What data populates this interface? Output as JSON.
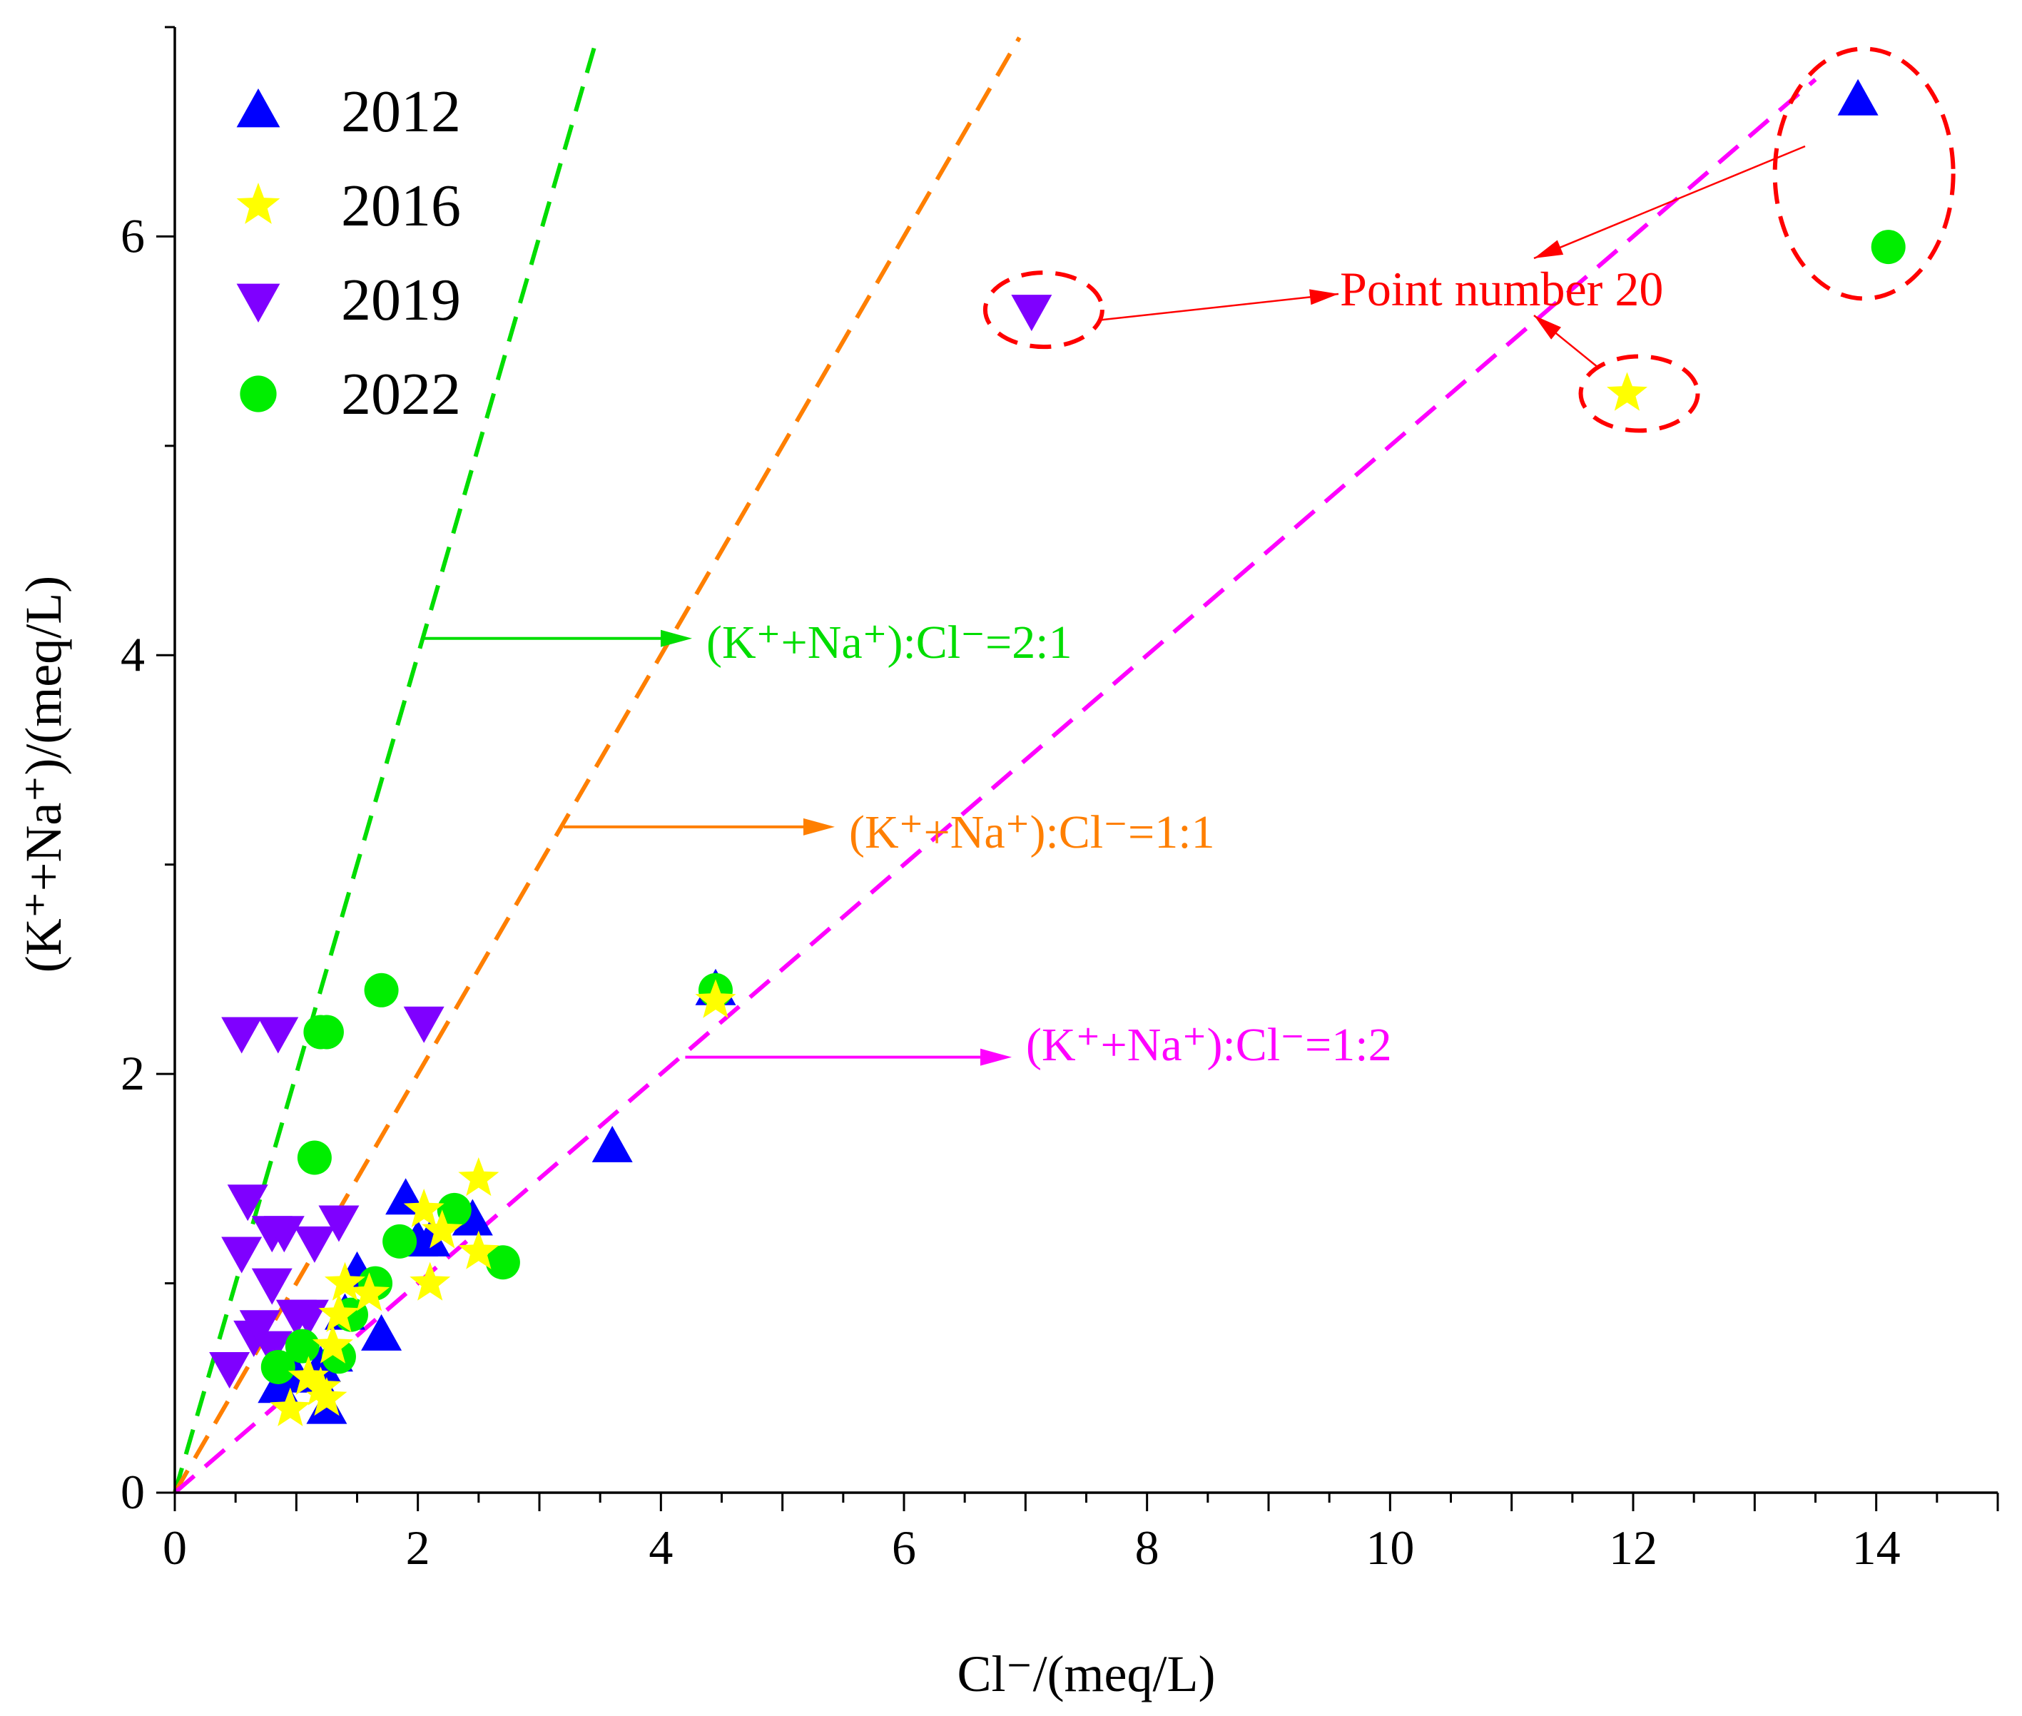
{
  "chart_data": {
    "type": "scatter",
    "title": "",
    "xlabel": "Cl⁻/(meq/L)",
    "ylabel": "(K⁺+Na⁺)/(meq/L)",
    "xlim": [
      0,
      15
    ],
    "ylim": [
      0,
      7
    ],
    "x_ticks": [
      0,
      2,
      4,
      6,
      8,
      10,
      12,
      14
    ],
    "y_ticks": [
      0,
      2,
      4,
      6
    ],
    "x_tick_labels": [
      "0",
      "2",
      "4",
      "6",
      "8",
      "10",
      "12",
      "14"
    ],
    "y_tick_labels": [
      "0",
      "2",
      "4",
      "6"
    ],
    "legend_position": "top-left",
    "series": [
      {
        "name": "2012",
        "marker": "triangle-up",
        "color": "#0000FF",
        "points": [
          [
            0.85,
            0.5
          ],
          [
            1.0,
            0.55
          ],
          [
            1.15,
            0.55
          ],
          [
            1.25,
            0.4
          ],
          [
            1.2,
            0.6
          ],
          [
            1.3,
            0.65
          ],
          [
            1.4,
            0.85
          ],
          [
            1.5,
            1.05
          ],
          [
            1.7,
            0.75
          ],
          [
            1.9,
            1.4
          ],
          [
            2.0,
            1.2
          ],
          [
            2.1,
            1.2
          ],
          [
            2.45,
            1.3
          ],
          [
            3.6,
            1.65
          ],
          [
            4.45,
            2.4
          ],
          [
            13.85,
            6.65
          ]
        ]
      },
      {
        "name": "2016",
        "marker": "star",
        "color": "#FFFF00",
        "points": [
          [
            0.95,
            0.4
          ],
          [
            1.1,
            0.55
          ],
          [
            1.2,
            0.5
          ],
          [
            1.25,
            0.45
          ],
          [
            1.3,
            0.7
          ],
          [
            1.35,
            0.85
          ],
          [
            1.4,
            1.0
          ],
          [
            1.6,
            0.95
          ],
          [
            2.05,
            1.35
          ],
          [
            2.1,
            1.0
          ],
          [
            2.2,
            1.25
          ],
          [
            2.5,
            1.5
          ],
          [
            2.5,
            1.15
          ],
          [
            4.45,
            2.35
          ],
          [
            11.95,
            5.25
          ]
        ]
      },
      {
        "name": "2019",
        "marker": "triangle-down",
        "color": "#7F00FF",
        "points": [
          [
            0.45,
            0.6
          ],
          [
            0.55,
            1.15
          ],
          [
            0.55,
            2.2
          ],
          [
            0.6,
            1.4
          ],
          [
            0.65,
            0.75
          ],
          [
            0.7,
            0.8
          ],
          [
            0.8,
            0.7
          ],
          [
            0.8,
            1.0
          ],
          [
            0.8,
            1.25
          ],
          [
            0.85,
            2.2
          ],
          [
            0.9,
            1.25
          ],
          [
            1.0,
            0.85
          ],
          [
            1.1,
            0.85
          ],
          [
            1.15,
            1.2
          ],
          [
            1.35,
            1.3
          ],
          [
            2.05,
            2.25
          ],
          [
            7.05,
            5.65
          ]
        ]
      },
      {
        "name": "2022",
        "marker": "circle",
        "color": "#00EE00",
        "points": [
          [
            0.85,
            0.6
          ],
          [
            1.05,
            0.7
          ],
          [
            1.15,
            1.6
          ],
          [
            1.2,
            2.2
          ],
          [
            1.25,
            2.2
          ],
          [
            1.35,
            0.65
          ],
          [
            1.45,
            0.85
          ],
          [
            1.7,
            2.4
          ],
          [
            1.65,
            1.0
          ],
          [
            1.85,
            1.2
          ],
          [
            2.3,
            1.35
          ],
          [
            2.7,
            1.1
          ],
          [
            4.45,
            2.4
          ],
          [
            14.1,
            5.95
          ]
        ]
      }
    ],
    "ratio_lines": [
      {
        "label": "(K⁺+Na⁺):Cl⁻=2:1",
        "slope": 2.0,
        "x_end": 3.45,
        "color": "#00DD00"
      },
      {
        "label": "(K⁺+Na⁺):Cl⁻=1:1",
        "slope": 1.0,
        "x_end": 6.95,
        "color": "#FF7F00"
      },
      {
        "label": "(K⁺+Na⁺):Cl⁻=1:2",
        "slope": 0.5,
        "x_end": 13.5,
        "color": "#FF00FF"
      }
    ],
    "annotations": [
      {
        "text": "Point number 20",
        "color": "#FF0000"
      }
    ]
  }
}
